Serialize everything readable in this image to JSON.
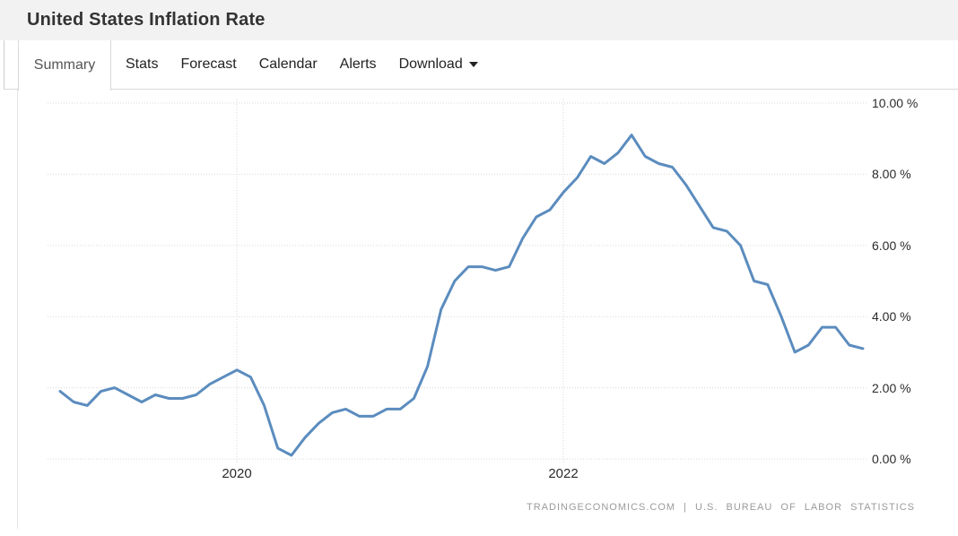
{
  "header": {
    "title": "United States Inflation Rate"
  },
  "tabs": {
    "active": "Summary",
    "items": [
      {
        "label": "Summary",
        "active": true
      },
      {
        "label": "Stats",
        "active": false
      },
      {
        "label": "Forecast",
        "active": false
      },
      {
        "label": "Calendar",
        "active": false
      },
      {
        "label": "Alerts",
        "active": false
      },
      {
        "label": "Download",
        "active": false,
        "has_dropdown": true
      }
    ]
  },
  "chart_data": {
    "type": "line",
    "title": "United States Inflation Rate",
    "unit": "percent",
    "frequency": "monthly",
    "x_start": "2018-12",
    "x_end": "2023-11",
    "values": [
      1.9,
      1.6,
      1.5,
      1.9,
      2.0,
      1.8,
      1.6,
      1.8,
      1.7,
      1.7,
      1.8,
      2.1,
      2.3,
      2.5,
      2.3,
      1.5,
      0.3,
      0.1,
      0.6,
      1.0,
      1.3,
      1.4,
      1.2,
      1.2,
      1.4,
      1.4,
      1.7,
      2.6,
      4.2,
      5.0,
      5.4,
      5.4,
      5.3,
      5.4,
      6.2,
      6.8,
      7.0,
      7.5,
      7.9,
      8.5,
      8.3,
      8.6,
      9.1,
      8.5,
      8.3,
      8.2,
      7.7,
      7.1,
      6.5,
      6.4,
      6.0,
      5.0,
      4.9,
      4.0,
      3.0,
      3.2,
      3.7,
      3.7,
      3.2,
      3.1
    ],
    "x_tick_labels": [
      {
        "label": "2020",
        "index": 13
      },
      {
        "label": "2022",
        "index": 37
      }
    ],
    "y_ticks": [
      "0.00 %",
      "2.00 %",
      "4.00 %",
      "6.00 %",
      "8.00 %",
      "10.00 %"
    ],
    "ylim": [
      0,
      10
    ],
    "grid": "dotted",
    "line_color": "#5b8cbe",
    "legend": "none"
  },
  "footer": {
    "attribution": "TRADINGECONOMICS.COM | U.S. BUREAU OF LABOR STATISTICS"
  }
}
